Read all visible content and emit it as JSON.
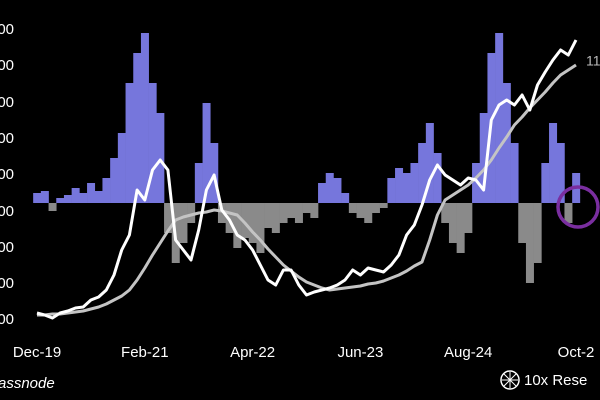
{
  "chart_data": {
    "type": "line",
    "categories": [
      "Dec-19",
      null,
      null,
      null,
      null,
      null,
      null,
      null,
      null,
      null,
      null,
      null,
      null,
      null,
      "Feb-21",
      null,
      null,
      null,
      null,
      null,
      null,
      null,
      null,
      null,
      null,
      null,
      null,
      null,
      "Apr-22",
      null,
      null,
      null,
      null,
      null,
      null,
      null,
      null,
      null,
      null,
      null,
      null,
      null,
      "Jun-23",
      null,
      null,
      null,
      null,
      null,
      null,
      null,
      null,
      null,
      null,
      null,
      null,
      null,
      "Aug-24",
      null,
      null,
      null,
      null,
      null,
      null,
      null,
      null,
      null,
      null,
      null,
      null,
      null,
      "Oct-2"
    ],
    "series": [
      {
        "color": "#ffffff",
        "values": [
          27,
          25,
          22,
          27,
          29,
          32,
          33,
          40,
          43,
          50,
          65,
          90,
          105,
          150,
          140,
          170,
          180,
          170,
          100,
          90,
          80,
          110,
          150,
          165,
          130,
          120,
          105,
          100,
          90,
          75,
          60,
          55,
          70,
          70,
          55,
          45,
          48,
          50,
          52,
          55,
          60,
          70,
          65,
          72,
          70,
          68,
          75,
          85,
          105,
          115,
          135,
          160,
          175,
          165,
          160,
          155,
          162,
          160,
          150,
          220,
          235,
          240,
          235,
          245,
          230,
          255,
          268,
          280,
          290,
          285,
          300
        ]
      },
      {
        "color": "#c4c4c4",
        "values": [
          25,
          25,
          26,
          26,
          27,
          28,
          29,
          31,
          33,
          36,
          40,
          44,
          50,
          60,
          72,
          85,
          97,
          109,
          120,
          123,
          125,
          127,
          128,
          130,
          129,
          127,
          125,
          117,
          108,
          100,
          91,
          83,
          75,
          69,
          63,
          58,
          55,
          52,
          50,
          51,
          52,
          53,
          54,
          56,
          57,
          59,
          62,
          65,
          69,
          74,
          78,
          100,
          125,
          140,
          145,
          150,
          155,
          162,
          170,
          180,
          192,
          203,
          215,
          223,
          232,
          240,
          248,
          257,
          265,
          270,
          275
        ]
      },
      {
        "type": "bar",
        "axis": "y2",
        "positive_color": "#7676dc",
        "negative_color": "#8a8a8a",
        "values": [
          10,
          12,
          -8,
          5,
          8,
          15,
          10,
          20,
          12,
          25,
          45,
          70,
          120,
          150,
          170,
          120,
          90,
          -30,
          -60,
          -40,
          -20,
          40,
          100,
          60,
          -20,
          -30,
          -45,
          -35,
          -40,
          -50,
          -25,
          -30,
          -20,
          -15,
          -20,
          -10,
          -15,
          20,
          30,
          25,
          10,
          -10,
          -15,
          -20,
          -10,
          -5,
          25,
          35,
          30,
          40,
          60,
          80,
          50,
          -20,
          -40,
          -50,
          -30,
          40,
          90,
          150,
          170,
          120,
          60,
          -40,
          -80,
          -60,
          40,
          80,
          60,
          -20,
          30
        ]
      }
    ],
    "ylim": [
      0,
      340
    ],
    "yticks": [
      {
        "value": 310,
        "label": "00"
      },
      {
        "value": 274,
        "label": "00"
      },
      {
        "value": 237,
        "label": "00"
      },
      {
        "value": 201,
        "label": "00"
      },
      {
        "value": 165,
        "label": "00"
      },
      {
        "value": 128,
        "label": "00"
      },
      {
        "value": 92,
        "label": "00"
      },
      {
        "value": 56,
        "label": "00"
      },
      {
        "value": 20,
        "label": "00"
      }
    ],
    "y2lim": [
      -137,
      203
    ],
    "annotation": "11",
    "source": "assnode",
    "brand": "10x Rese"
  }
}
